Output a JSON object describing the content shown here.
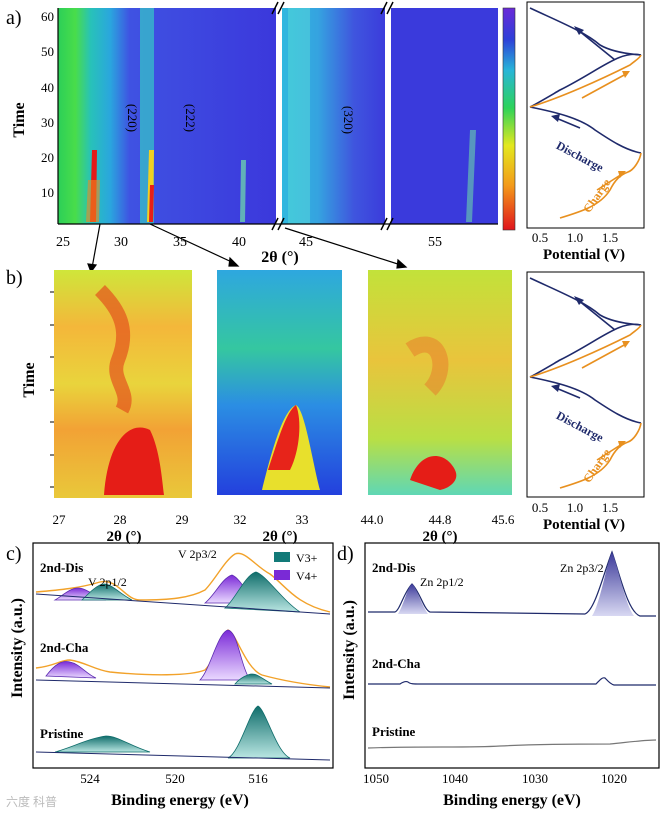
{
  "colors": {
    "navy": "#1f2a6b",
    "orange": "#e8901f",
    "teal": "#127a78",
    "purple": "#7a2ad6",
    "grayline": "#777777"
  },
  "panel_a": {
    "label": "a)",
    "ylabel": "Time",
    "yticks": [
      "10",
      "20",
      "30",
      "40",
      "50",
      "60"
    ],
    "xticks": [
      "25",
      "30",
      "35",
      "40",
      "45",
      "55"
    ],
    "xlabel": "2θ (°)",
    "peaks": [
      "(220)",
      "(222)",
      "(320)"
    ]
  },
  "panel_b": {
    "label": "b)",
    "ylabel": "Time",
    "x1ticks": [
      "27",
      "28",
      "29"
    ],
    "x2ticks": [
      "32",
      "33"
    ],
    "x3ticks": [
      "44.0",
      "44.8",
      "45.6"
    ],
    "xlabel": "2θ (°)"
  },
  "echem": {
    "xticks": [
      "0.5",
      "1.0",
      "1.5"
    ],
    "xlabel": "Potential (V)",
    "discharge": "Discharge",
    "charge": "Charge"
  },
  "panel_c": {
    "label": "c)",
    "ylabel": "Intensity (a.u.)",
    "xlabel": "Binding energy (eV)",
    "xticks": [
      "524",
      "520",
      "516"
    ],
    "traces": [
      "2nd-Dis",
      "2nd-Cha",
      "Pristine"
    ],
    "peak_v2p12": "V 2p1/2",
    "peak_v2p32": "V 2p3/2",
    "legend_v3": "V3+",
    "legend_v4": "V4+"
  },
  "panel_d": {
    "label": "d)",
    "ylabel": "Intensity (a.u.)",
    "xlabel": "Binding energy (eV)",
    "xticks": [
      "1050",
      "1040",
      "1030",
      "1020"
    ],
    "traces": [
      "2nd-Dis",
      "2nd-Cha",
      "Pristine"
    ],
    "peak_zn12": "Zn 2p1/2",
    "peak_zn32": "Zn 2p3/2"
  },
  "watermark": "六度 科普"
}
